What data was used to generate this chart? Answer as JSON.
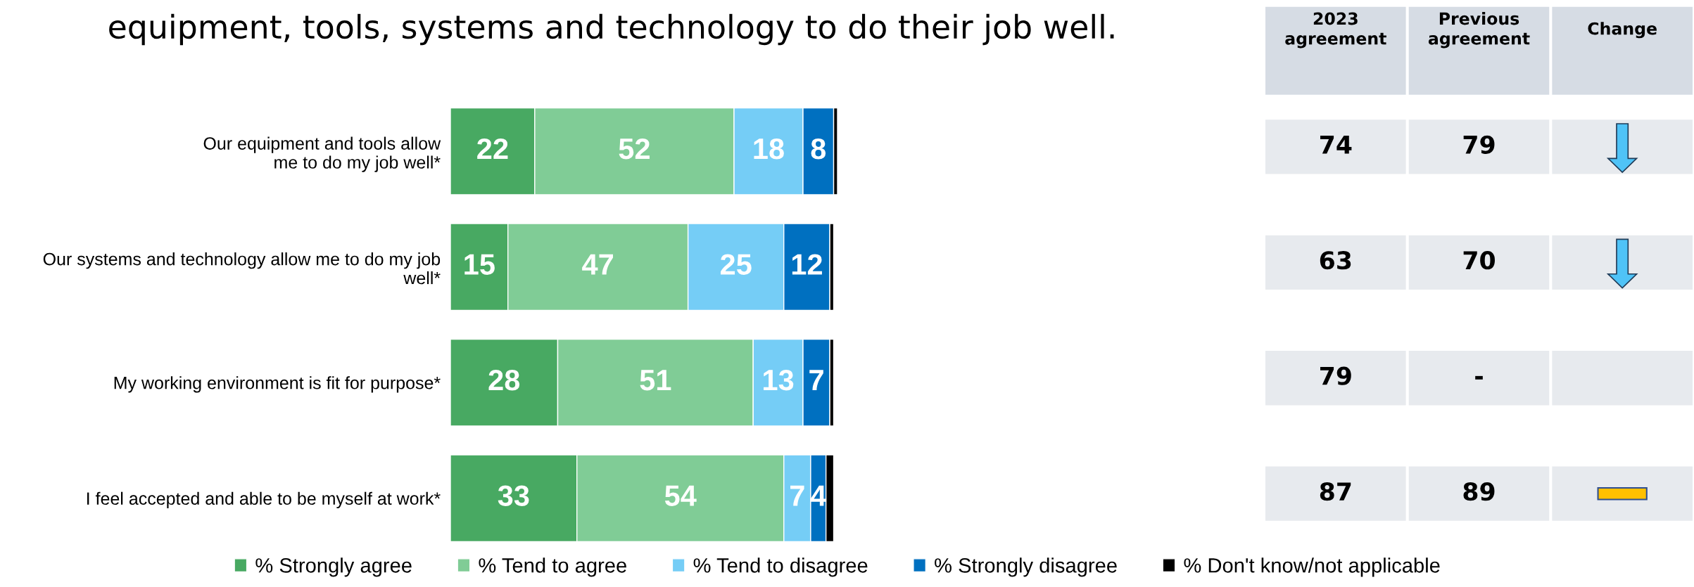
{
  "chart_data": [
    {
      "type": "bar",
      "orientation": "horizontal",
      "stacked": true,
      "title": "equipment, tools, systems and technology to do their job well.",
      "categories": [
        "Our equipment and tools allow\nme to do my job well*",
        "Our systems and technology allow me to do my job\nwell*",
        "My working environment is fit for purpose*",
        "I feel accepted and able to be myself at work*"
      ],
      "series": [
        {
          "name": "% Strongly agree",
          "color": "#48a962",
          "values": [
            22,
            15,
            28,
            33
          ],
          "value_labels": [
            "22",
            "15",
            "28",
            "33"
          ]
        },
        {
          "name": "% Tend to agree",
          "color": "#80cc96",
          "values": [
            52,
            47,
            51,
            54
          ],
          "value_labels": [
            "52",
            "47",
            "51",
            "54"
          ]
        },
        {
          "name": "% Tend to disagree",
          "color": "#75cdf6",
          "values": [
            18,
            25,
            13,
            7
          ],
          "value_labels": [
            "18",
            "25",
            "13",
            "7"
          ]
        },
        {
          "name": "% Strongly disagree",
          "color": "#0070c0",
          "values": [
            8,
            12,
            7,
            4
          ],
          "value_labels": [
            "8",
            "12",
            "7",
            "4"
          ]
        },
        {
          "name": "% Don't know/not applicable",
          "color": "#000000",
          "values": [
            1,
            1,
            1,
            2
          ],
          "value_labels": [
            null,
            null,
            null,
            null
          ]
        }
      ],
      "xlim": [
        0,
        101
      ],
      "tick_labels": "y",
      "legend": "bottom",
      "grid": false
    },
    {
      "type": "other",
      "categories": [
        "2023\nagreement",
        "Previous\nagreement",
        "Change"
      ],
      "cell_labels": [
        [
          "74",
          "79",
          null
        ],
        [
          "63",
          "70",
          null
        ],
        [
          "79",
          "-",
          null
        ],
        [
          "87",
          "89",
          null
        ]
      ]
    }
  ]
}
